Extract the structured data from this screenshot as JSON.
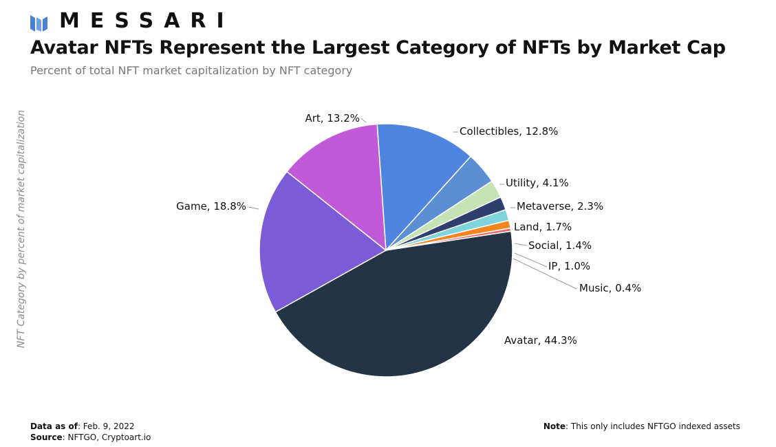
{
  "brand": {
    "name": "MESSARI",
    "logo_icon": "messari-logo-icon",
    "logo_color": "#4a7fd6"
  },
  "header": {
    "title": "Avatar NFTs Represent the Largest Category of NFTs by Market Cap",
    "subtitle": "Percent of total NFT market capitalization by NFT category"
  },
  "chart_data": {
    "type": "pie",
    "title": "Avatar NFTs Represent the Largest Category of NFTs by Market Cap",
    "subtitle": "Percent of total NFT market capitalization by NFT category",
    "ylabel": "NFT Category by percent of market capitalization",
    "unit": "%",
    "start_angle_deg": -4,
    "direction": "clockwise",
    "slices": [
      {
        "name": "Collectibles",
        "value": 12.8,
        "label": "Collectibles, 12.8%",
        "color": "#4f85e0"
      },
      {
        "name": "Utility",
        "value": 4.1,
        "label": "Utility, 4.1%",
        "color": "#5b8fd4"
      },
      {
        "name": "Metaverse",
        "value": 2.3,
        "label": "Metaverse, 2.3%",
        "color": "#c5e3b4"
      },
      {
        "name": "Land",
        "value": 1.7,
        "label": "Land, 1.7%",
        "color": "#2e3f6e"
      },
      {
        "name": "Social",
        "value": 1.4,
        "label": "Social, 1.4%",
        "color": "#7fd3dc"
      },
      {
        "name": "IP",
        "value": 1.0,
        "label": "IP, 1.0%",
        "color": "#f5861f"
      },
      {
        "name": "Music",
        "value": 0.4,
        "label": "Music, 0.4%",
        "color": "#e86a6a"
      },
      {
        "name": "Avatar",
        "value": 44.3,
        "label": "Avatar, 44.3%",
        "color": "#243447"
      },
      {
        "name": "Game",
        "value": 18.8,
        "label": "Game, 18.8%",
        "color": "#7b5cd6"
      },
      {
        "name": "Art",
        "value": 13.2,
        "label": "Art, 13.2%",
        "color": "#c05ad8"
      }
    ],
    "data_labels": "outside with leader lines",
    "legend": "none"
  },
  "footer": {
    "data_as_of_label": "Data as of",
    "data_as_of_value": ": Feb. 9, 2022",
    "source_label": "Source",
    "source_value": ": NFTGO, Cryptoart.io",
    "note_label": "Note",
    "note_value": ": This only includes NFTGO indexed assets"
  }
}
